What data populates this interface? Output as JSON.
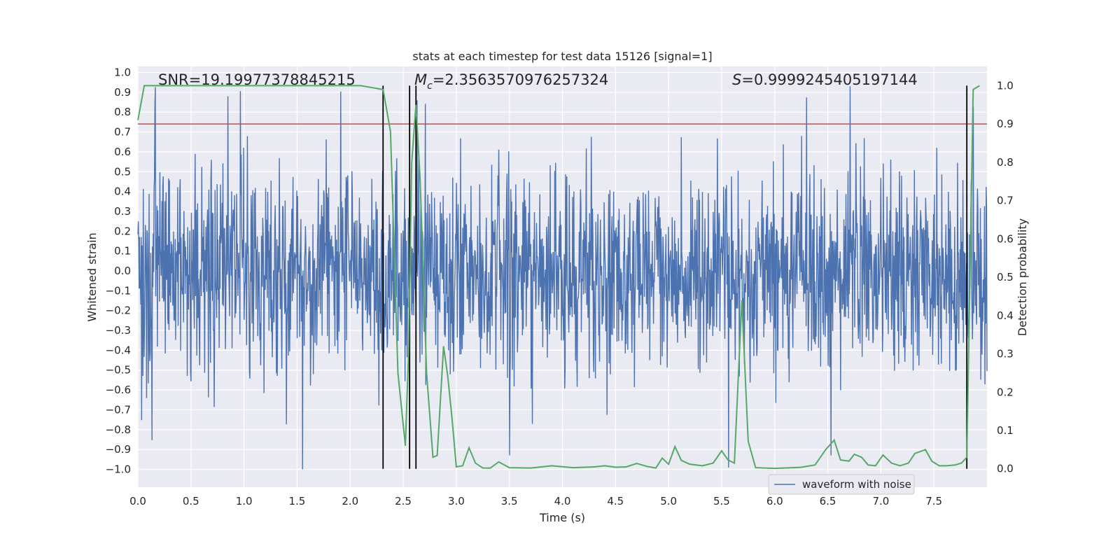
{
  "chart_data": {
    "type": "line",
    "title": "stats at each timestep for test data 15126 [signal=1]",
    "xlabel": "Time (s)",
    "ylabel_left": "Whitened strain",
    "ylabel_right": "Detection probability",
    "xlim": [
      0,
      8
    ],
    "ylim_left": [
      -1.09,
      1.03
    ],
    "ylim_right": [
      -0.048,
      1.05
    ],
    "x_ticks": [
      0.0,
      0.5,
      1.0,
      1.5,
      2.0,
      2.5,
      3.0,
      3.5,
      4.0,
      4.5,
      5.0,
      5.5,
      6.0,
      6.5,
      7.0,
      7.5
    ],
    "y_left_ticks": [
      1.0,
      0.9,
      0.8,
      0.7,
      0.6,
      0.5,
      0.4,
      0.3,
      0.2,
      0.1,
      0.0,
      -0.1,
      -0.2,
      -0.3,
      -0.4,
      -0.5,
      -0.6,
      -0.7,
      -0.8,
      -0.9,
      -1.0
    ],
    "y_right_ticks": [
      1.0,
      0.9,
      0.8,
      0.7,
      0.6,
      0.5,
      0.4,
      0.3,
      0.2,
      0.1,
      0.0
    ],
    "grid": true,
    "legend_position": "bottom-right",
    "annotations": {
      "snr": {
        "prefix": "SNR=",
        "value": "19.19977378845215"
      },
      "mc": {
        "symbol": "M",
        "subscript": "c",
        "value": "=2.3563570976257324"
      },
      "s": {
        "symbol": "S",
        "value": "=0.9999245405197144"
      }
    },
    "threshold": {
      "value": 0.9,
      "axis": "right",
      "color": "#c44e52"
    },
    "vertical_markers": [
      2.31,
      2.56,
      2.62,
      7.81
    ],
    "series": [
      {
        "name": "waveform with noise",
        "kind": "noise-strain",
        "axis": "left",
        "color": "#4c72b0",
        "sample_count": 2048,
        "max": 0.93,
        "min": -1.0,
        "peaks": [
          {
            "x": 0.16,
            "y": 0.84
          },
          {
            "x": 0.85,
            "y": 0.88
          },
          {
            "x": 6.71,
            "y": 0.93
          },
          {
            "x": 7.87,
            "y": 0.83
          },
          {
            "x": 1.55,
            "y": -1.0
          },
          {
            "x": 3.5,
            "y": -0.93
          },
          {
            "x": 6.53,
            "y": -0.93
          },
          {
            "x": 2.63,
            "y": 0.86
          }
        ]
      },
      {
        "kind": "detection-probability",
        "axis": "right",
        "color": "#55a868",
        "x": [
          0.0,
          0.06,
          0.3,
          0.6,
          0.9,
          1.2,
          1.5,
          1.8,
          2.1,
          2.31,
          2.38,
          2.45,
          2.52,
          2.55,
          2.58,
          2.62,
          2.66,
          2.72,
          2.78,
          2.82,
          2.88,
          2.92,
          2.96,
          3.0,
          3.06,
          3.12,
          3.18,
          3.25,
          3.32,
          3.4,
          3.5,
          3.7,
          3.9,
          4.1,
          4.3,
          4.4,
          4.5,
          4.6,
          4.7,
          4.8,
          4.88,
          4.94,
          5.0,
          5.06,
          5.12,
          5.2,
          5.32,
          5.42,
          5.5,
          5.56,
          5.62,
          5.69,
          5.75,
          5.82,
          6.0,
          6.25,
          6.38,
          6.48,
          6.56,
          6.62,
          6.7,
          6.75,
          6.82,
          6.88,
          6.95,
          7.02,
          7.1,
          7.18,
          7.26,
          7.32,
          7.42,
          7.48,
          7.55,
          7.62,
          7.7,
          7.76,
          7.81,
          7.87,
          7.93
        ],
        "values": [
          0.91,
          1.0,
          1.0,
          1.0,
          1.0,
          1.0,
          1.0,
          1.0,
          1.0,
          0.99,
          0.88,
          0.25,
          0.06,
          0.3,
          0.8,
          0.95,
          0.75,
          0.25,
          0.03,
          0.035,
          0.32,
          0.24,
          0.13,
          0.005,
          0.008,
          0.055,
          0.015,
          0.002,
          0.002,
          0.018,
          0.003,
          0.002,
          0.008,
          0.003,
          0.005,
          0.008,
          0.004,
          0.005,
          0.014,
          0.006,
          0.002,
          0.028,
          0.012,
          0.058,
          0.022,
          0.012,
          0.008,
          0.015,
          0.047,
          0.023,
          0.015,
          0.44,
          0.072,
          0.003,
          0.001,
          0.004,
          0.01,
          0.05,
          0.075,
          0.023,
          0.02,
          0.038,
          0.03,
          0.01,
          0.008,
          0.036,
          0.015,
          0.008,
          0.015,
          0.04,
          0.05,
          0.02,
          0.008,
          0.008,
          0.01,
          0.015,
          0.03,
          0.99,
          1.0
        ]
      }
    ]
  }
}
